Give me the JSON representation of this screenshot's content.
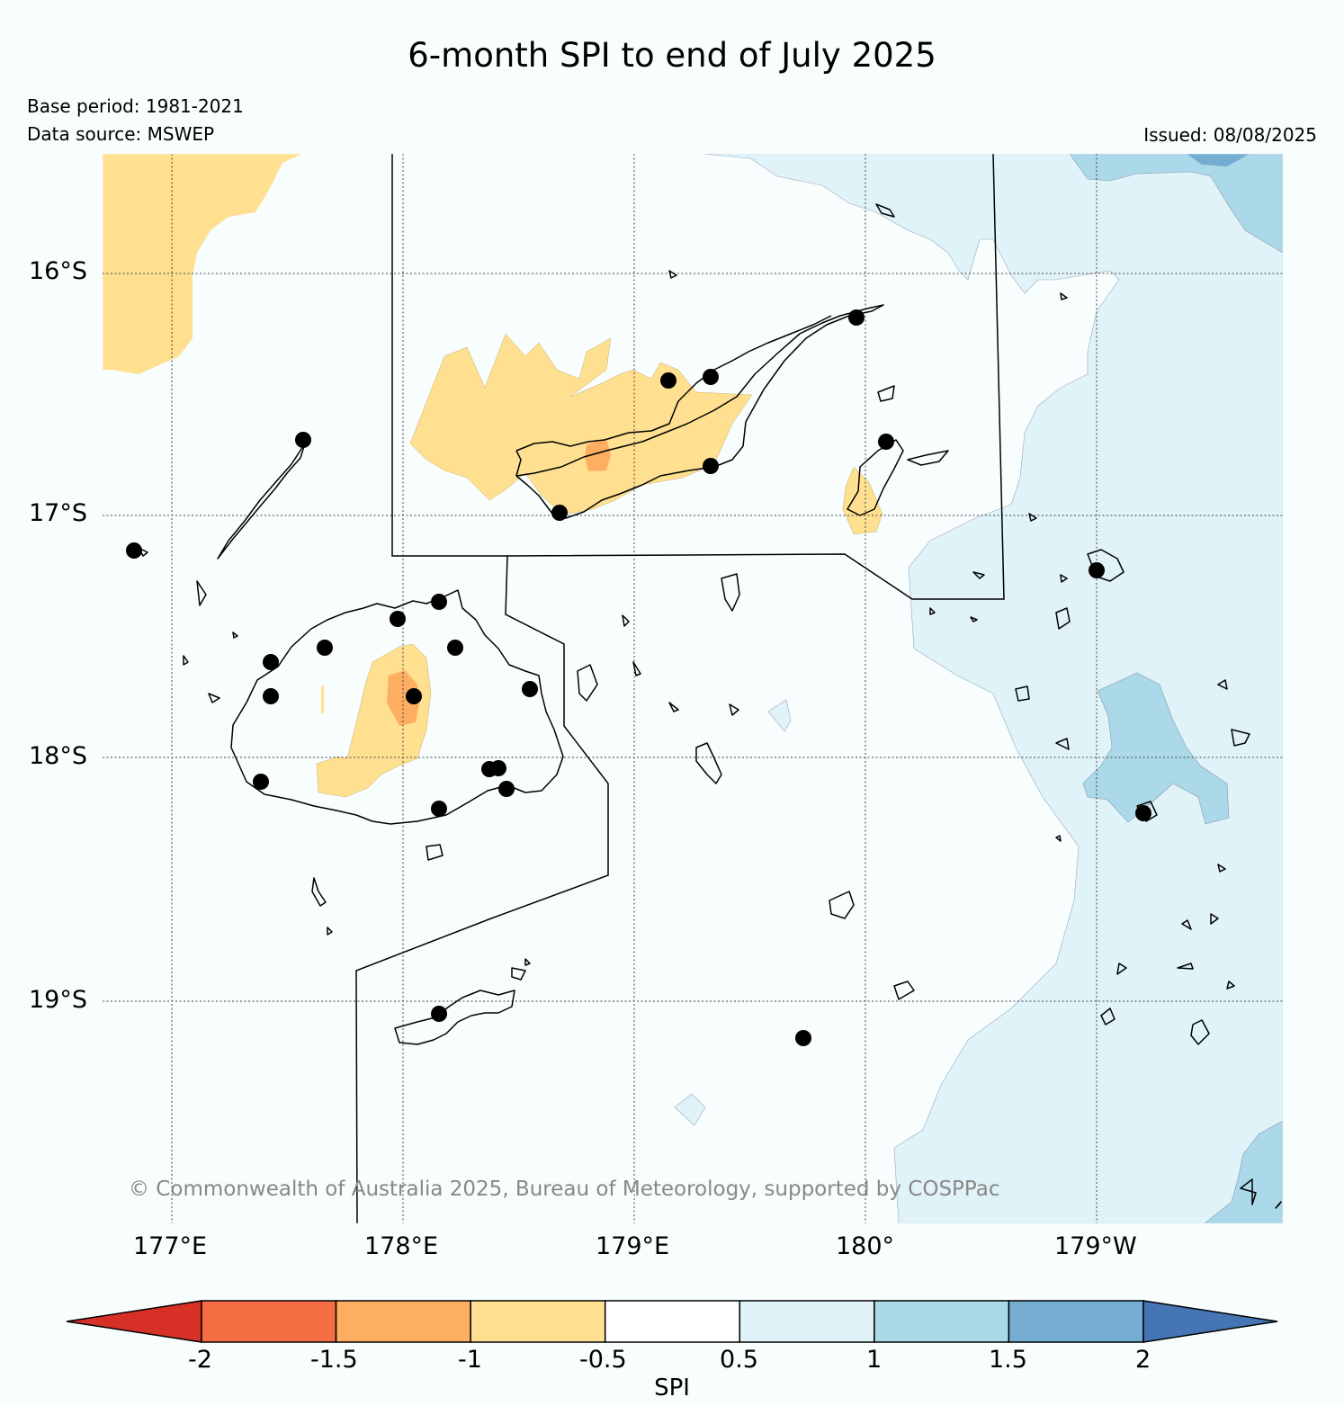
{
  "title": "6-month SPI to end of July 2025",
  "base_period": "Base period: 1981-2021",
  "data_source": "Data source: MSWEP",
  "issued": "Issued: 08/08/2025",
  "copyright": "© Commonwealth of Australia 2025, Bureau of Meteorology, supported by COSPPac",
  "lat_labels": [
    "16°S",
    "17°S",
    "18°S",
    "19°S"
  ],
  "lon_labels": [
    "177°E",
    "178°E",
    "179°E",
    "180°",
    "179°W"
  ],
  "colorbar": {
    "label": "SPI",
    "ticks": [
      "-2",
      "-1.5",
      "-1",
      "-0.5",
      "0.5",
      "1",
      "1.5",
      "2"
    ],
    "colors": [
      "#d73027",
      "#f46d43",
      "#fdae61",
      "#fee090",
      "#ffffff",
      "#e0f3f8",
      "#abd9e9",
      "#74add1",
      "#4575b4"
    ]
  },
  "colors": {
    "ocean": "#f8fdfe",
    "dry_mild": "#fee090",
    "dry_moderate": "#fdae61",
    "wet_mild": "#e0f3f8",
    "wet_moderate": "#abd9e9",
    "wet_severe": "#74add1"
  }
}
